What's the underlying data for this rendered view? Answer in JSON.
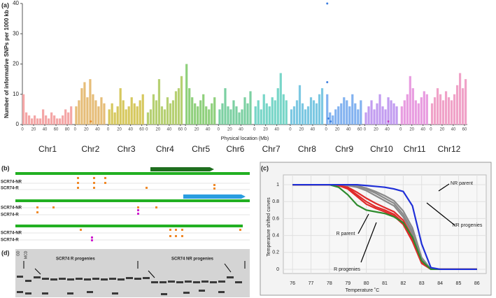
{
  "chart_data": [
    {
      "type": "bar",
      "panel_label": "(a)",
      "ylabel": "Number of informative SNPs per 1000 kb",
      "xlabel": "Physical location (Mb)",
      "ylim": [
        0,
        40
      ],
      "yticks": [
        0,
        10,
        20,
        30,
        40
      ],
      "series": [
        {
          "name": "Chr1",
          "color": "#f4a6a6",
          "xticks": [
            0,
            20,
            40,
            60,
            80
          ],
          "x": [
            0,
            5,
            10,
            15,
            20,
            25,
            30,
            35,
            40,
            45,
            50,
            55,
            60,
            65,
            70,
            75,
            80,
            85
          ],
          "values": [
            10,
            4,
            3,
            2,
            3,
            2,
            2,
            5,
            3,
            2,
            4,
            3,
            2,
            2,
            3,
            5,
            4,
            6
          ]
        },
        {
          "name": "Chr2",
          "color": "#e6bd78",
          "xticks": [
            0,
            20,
            40
          ],
          "x": [
            0,
            5,
            10,
            15,
            20,
            25,
            30,
            35,
            40,
            45,
            50
          ],
          "values": [
            6,
            8,
            12,
            14,
            9,
            15,
            10,
            8,
            6,
            9,
            7
          ],
          "marker_x": [
            28
          ],
          "marker_values": [
            1
          ],
          "marker_color": "#e88a2a"
        },
        {
          "name": "Chr3",
          "color": "#d6c85e",
          "xticks": [
            0,
            20,
            40,
            60
          ],
          "x": [
            0,
            5,
            10,
            15,
            20,
            25,
            30,
            35,
            40,
            45,
            50,
            55,
            60
          ],
          "values": [
            5,
            7,
            4,
            6,
            12,
            8,
            5,
            6,
            9,
            7,
            6,
            8,
            10
          ]
        },
        {
          "name": "Chr4",
          "color": "#b6d072",
          "xticks": [
            0,
            20,
            40,
            60
          ],
          "x": [
            0,
            5,
            10,
            15,
            20,
            25,
            30,
            35,
            40,
            45,
            50,
            55,
            60
          ],
          "values": [
            4,
            5,
            10,
            8,
            15,
            6,
            5,
            9,
            7,
            8,
            11,
            12,
            16
          ]
        },
        {
          "name": "Chr5",
          "color": "#8fd07c",
          "xticks": [
            0,
            20,
            40
          ],
          "x": [
            0,
            5,
            10,
            15,
            20,
            25,
            30,
            35,
            40,
            45,
            50
          ],
          "values": [
            20,
            12,
            9,
            7,
            6,
            8,
            10,
            6,
            5,
            7,
            9
          ]
        },
        {
          "name": "Chr6",
          "color": "#7cd0a2",
          "xticks": [
            0,
            20,
            40
          ],
          "x": [
            0,
            5,
            10,
            15,
            20,
            25,
            30,
            35,
            40,
            45,
            50,
            55
          ],
          "values": [
            5,
            7,
            12,
            6,
            5,
            8,
            6,
            4,
            5,
            9,
            7,
            11
          ]
        },
        {
          "name": "Chr7",
          "color": "#78d6c8",
          "xticks": [
            0,
            20,
            40
          ],
          "x": [
            0,
            5,
            10,
            15,
            20,
            25,
            30,
            35,
            40,
            45,
            50,
            55
          ],
          "values": [
            6,
            8,
            5,
            10,
            7,
            6,
            9,
            8,
            12,
            17,
            10,
            8
          ]
        },
        {
          "name": "Chr8",
          "color": "#7cc8e2",
          "xticks": [
            0,
            20,
            40
          ],
          "x": [
            0,
            5,
            10,
            15,
            20,
            25,
            30,
            35,
            40,
            45,
            50,
            55
          ],
          "values": [
            5,
            6,
            8,
            13,
            7,
            5,
            6,
            9,
            8,
            7,
            10,
            12
          ]
        },
        {
          "name": "Chr9",
          "color": "#82b2f0",
          "xticks": [
            0,
            20,
            40,
            60
          ],
          "x": [
            0,
            5,
            10,
            15,
            20,
            25,
            30,
            35,
            40,
            45,
            50,
            55,
            60
          ],
          "values": [
            10,
            4,
            3,
            5,
            6,
            7,
            9,
            8,
            6,
            10,
            7,
            5,
            8
          ],
          "marker_x": [
            2,
            2,
            4,
            8
          ],
          "marker_values": [
            40,
            14,
            2,
            1
          ],
          "marker_color": "#3f7fe0"
        },
        {
          "name": "Chr10",
          "color": "#c29cf0",
          "xticks": [
            0,
            20,
            40
          ],
          "x": [
            0,
            5,
            10,
            15,
            20,
            25,
            30,
            35,
            40,
            45,
            50,
            55
          ],
          "values": [
            4,
            6,
            8,
            5,
            7,
            10,
            6,
            5,
            9,
            8,
            7,
            6
          ],
          "marker_x": [
            42
          ],
          "marker_values": [
            1
          ],
          "marker_color": "#c040c0"
        },
        {
          "name": "Chr11",
          "color": "#e89ce0",
          "xticks": [
            0,
            20,
            40
          ],
          "x": [
            0,
            5,
            10,
            15,
            20,
            25,
            30,
            35,
            40,
            45
          ],
          "values": [
            6,
            8,
            10,
            16,
            12,
            8,
            7,
            9,
            11,
            10
          ]
        },
        {
          "name": "Chr12",
          "color": "#f0a2c8",
          "xticks": [
            0,
            20,
            40,
            60
          ],
          "x": [
            0,
            5,
            10,
            15,
            20,
            25,
            30,
            35,
            40,
            45,
            50,
            55,
            60
          ],
          "values": [
            7,
            9,
            12,
            10,
            8,
            11,
            9,
            8,
            10,
            13,
            17,
            12,
            15
          ]
        }
      ]
    },
    {
      "type": "line",
      "panel_label": "(c)",
      "ylabel": "Temperature shifted curves",
      "xlabel": "Temperature ˚C",
      "xlim": [
        75.5,
        86.5
      ],
      "xticks": [
        76,
        77,
        78,
        79,
        80,
        81,
        82,
        83,
        84,
        85,
        86
      ],
      "ylim": [
        -0.05,
        1.05
      ],
      "yticks": [
        0,
        0.2,
        0.4,
        0.6,
        0.8,
        1
      ],
      "x": [
        76,
        77,
        78,
        78.5,
        79,
        79.5,
        80,
        80.5,
        81,
        81.5,
        82,
        82.5,
        83,
        83.5,
        84,
        85,
        86
      ],
      "series": [
        {
          "name": "NR progenies",
          "color": "#8a8a8a",
          "curves": [
            [
              1,
              1,
              1,
              1,
              0.99,
              0.98,
              0.95,
              0.9,
              0.84,
              0.78,
              0.65,
              0.45,
              0.12,
              0,
              0,
              0,
              0
            ],
            [
              1,
              1,
              1,
              1,
              0.99,
              0.97,
              0.93,
              0.87,
              0.81,
              0.75,
              0.62,
              0.42,
              0.1,
              0,
              0,
              0,
              0
            ],
            [
              1,
              1,
              1,
              1,
              1,
              0.99,
              0.96,
              0.92,
              0.87,
              0.81,
              0.69,
              0.49,
              0.14,
              0,
              0,
              0,
              0
            ]
          ]
        },
        {
          "name": "R progenies",
          "color": "#e02a2a",
          "curves": [
            [
              1,
              1,
              1,
              0.99,
              0.96,
              0.88,
              0.8,
              0.74,
              0.7,
              0.65,
              0.55,
              0.35,
              0.08,
              0,
              0,
              0,
              0
            ],
            [
              1,
              1,
              1,
              0.99,
              0.97,
              0.91,
              0.84,
              0.78,
              0.73,
              0.68,
              0.58,
              0.38,
              0.09,
              0,
              0,
              0,
              0
            ],
            [
              1,
              1,
              1,
              0.99,
              0.95,
              0.86,
              0.77,
              0.72,
              0.68,
              0.63,
              0.53,
              0.33,
              0.07,
              0,
              0,
              0,
              0
            ]
          ]
        },
        {
          "name": "R parent",
          "color": "#2e8b2e",
          "curves": [
            [
              1,
              1,
              1,
              0.97,
              0.88,
              0.76,
              0.7,
              0.68,
              0.66,
              0.62,
              0.55,
              0.38,
              0.1,
              0,
              0,
              0,
              0
            ]
          ]
        },
        {
          "name": "NR parent",
          "color": "#1f2fd8",
          "curves": [
            [
              1,
              1,
              1,
              1,
              1,
              1,
              0.99,
              0.98,
              0.97,
              0.95,
              0.92,
              0.75,
              0.3,
              0.02,
              0,
              0,
              0
            ]
          ]
        }
      ]
    }
  ],
  "panel_b": {
    "panel_label": "(b)",
    "groups": [
      {
        "rows": [
          "SCR74-NR",
          "SCR74-R"
        ]
      },
      {
        "rows": [
          "SCR74-NR",
          "SCR74-R"
        ]
      },
      {
        "rows": [
          "SCR74-NR",
          "SCR74-R"
        ]
      }
    ]
  },
  "panel_d": {
    "panel_label": "(d)",
    "lanes": [
      "GD",
      "MCD"
    ],
    "labels": [
      "SCR74 R progenies",
      "SCR74 NR progenies"
    ]
  }
}
